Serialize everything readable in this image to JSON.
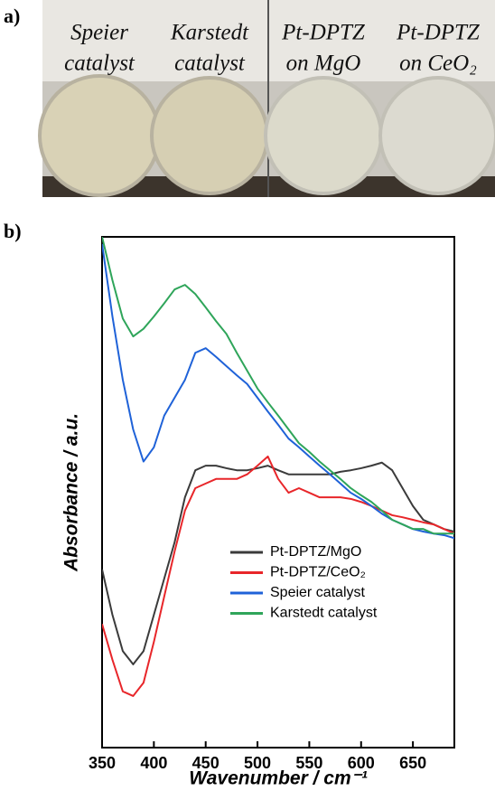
{
  "panels": [
    "a)",
    "b)"
  ],
  "photo": {
    "samples": [
      {
        "line1": "Speier",
        "line2": "catalyst"
      },
      {
        "line1": "Karstedt",
        "line2": "catalyst"
      },
      {
        "line1": "Pt-DPTZ",
        "line2": "on MgO"
      },
      {
        "line1": "Pt-DPTZ",
        "line2": "on CeO₂"
      }
    ]
  },
  "chart_data": {
    "type": "line",
    "x_label": "Wavenumber / cm⁻¹",
    "y_label": "Absorbance / a.u.",
    "x": [
      350,
      360,
      370,
      380,
      390,
      400,
      410,
      420,
      430,
      440,
      450,
      460,
      470,
      480,
      490,
      500,
      510,
      520,
      530,
      540,
      550,
      560,
      570,
      580,
      590,
      600,
      610,
      620,
      630,
      640,
      650,
      660,
      670,
      680,
      690
    ],
    "xlim": [
      350,
      690
    ],
    "xticks": [
      350,
      400,
      450,
      500,
      550,
      600,
      650
    ],
    "ylim": [
      0,
      100
    ],
    "legend": "lower right",
    "series": [
      {
        "name": "Pt-DPTZ/MgO",
        "color": "#3b3b3b",
        "values": [
          34.9,
          26,
          18.9,
          16.3,
          18.9,
          26,
          33.1,
          40.2,
          49,
          54.3,
          55.2,
          55.2,
          54.7,
          54.3,
          54.3,
          54.7,
          55.2,
          54.3,
          53.5,
          53.5,
          53.5,
          53.5,
          53.5,
          54,
          54.3,
          54.7,
          55.2,
          55.8,
          54.3,
          50.8,
          47.3,
          44.6,
          43.7,
          42.8,
          42.3
        ]
      },
      {
        "name": "Pt-DPTZ/CeO₂",
        "color": "#e8262a",
        "values": [
          24.2,
          17.2,
          11,
          10.1,
          12.7,
          20.7,
          29.6,
          38.4,
          46.4,
          50.8,
          51.7,
          52.6,
          52.6,
          52.6,
          53.5,
          55.2,
          57,
          52.6,
          49.9,
          50.8,
          49.9,
          49,
          49,
          49,
          48.7,
          48.1,
          47.3,
          46.4,
          45.5,
          45.1,
          44.6,
          44.1,
          43.7,
          42.8,
          41.9
        ]
      },
      {
        "name": "Speier catalyst",
        "color": "#1f62d8",
        "values": [
          98.6,
          84.4,
          72,
          62.3,
          56,
          58.8,
          65,
          68.5,
          72,
          77.3,
          78.2,
          76.5,
          74.7,
          72.9,
          71.2,
          68.5,
          65.8,
          63.2,
          60.5,
          58.8,
          57,
          55.2,
          53.5,
          51.7,
          49.9,
          48.7,
          47.3,
          45.8,
          44.6,
          43.7,
          42.8,
          42.3,
          41.9,
          41.6,
          41
        ]
      },
      {
        "name": "Karstedt catalyst",
        "color": "#2fa55a",
        "values": [
          100,
          91.5,
          84,
          80.5,
          82,
          84.4,
          87,
          89.7,
          90.6,
          88.8,
          86.2,
          83.5,
          81,
          77.3,
          73.8,
          70.3,
          67.6,
          65,
          62.3,
          59.6,
          57.9,
          56,
          54.3,
          52.6,
          50.8,
          49.4,
          48.1,
          46.4,
          44.6,
          43.7,
          42.8,
          42.8,
          41.9,
          41.9,
          41.9
        ]
      }
    ]
  }
}
